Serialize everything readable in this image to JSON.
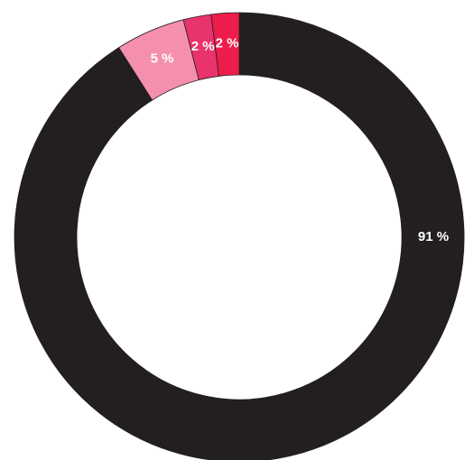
{
  "chart_data": {
    "type": "donut",
    "series": [
      {
        "color": "#231f20",
        "values": [
          91
        ],
        "value_labels": [
          "91 %"
        ]
      },
      {
        "color": "#f490ad",
        "values": [
          5
        ],
        "value_labels": [
          "5 %"
        ]
      },
      {
        "color": "#e8336d",
        "values": [
          2
        ],
        "value_labels": [
          "2 %"
        ]
      },
      {
        "color": "#ee1c4a",
        "values": [
          2
        ],
        "value_labels": [
          "2 %"
        ]
      }
    ]
  }
}
